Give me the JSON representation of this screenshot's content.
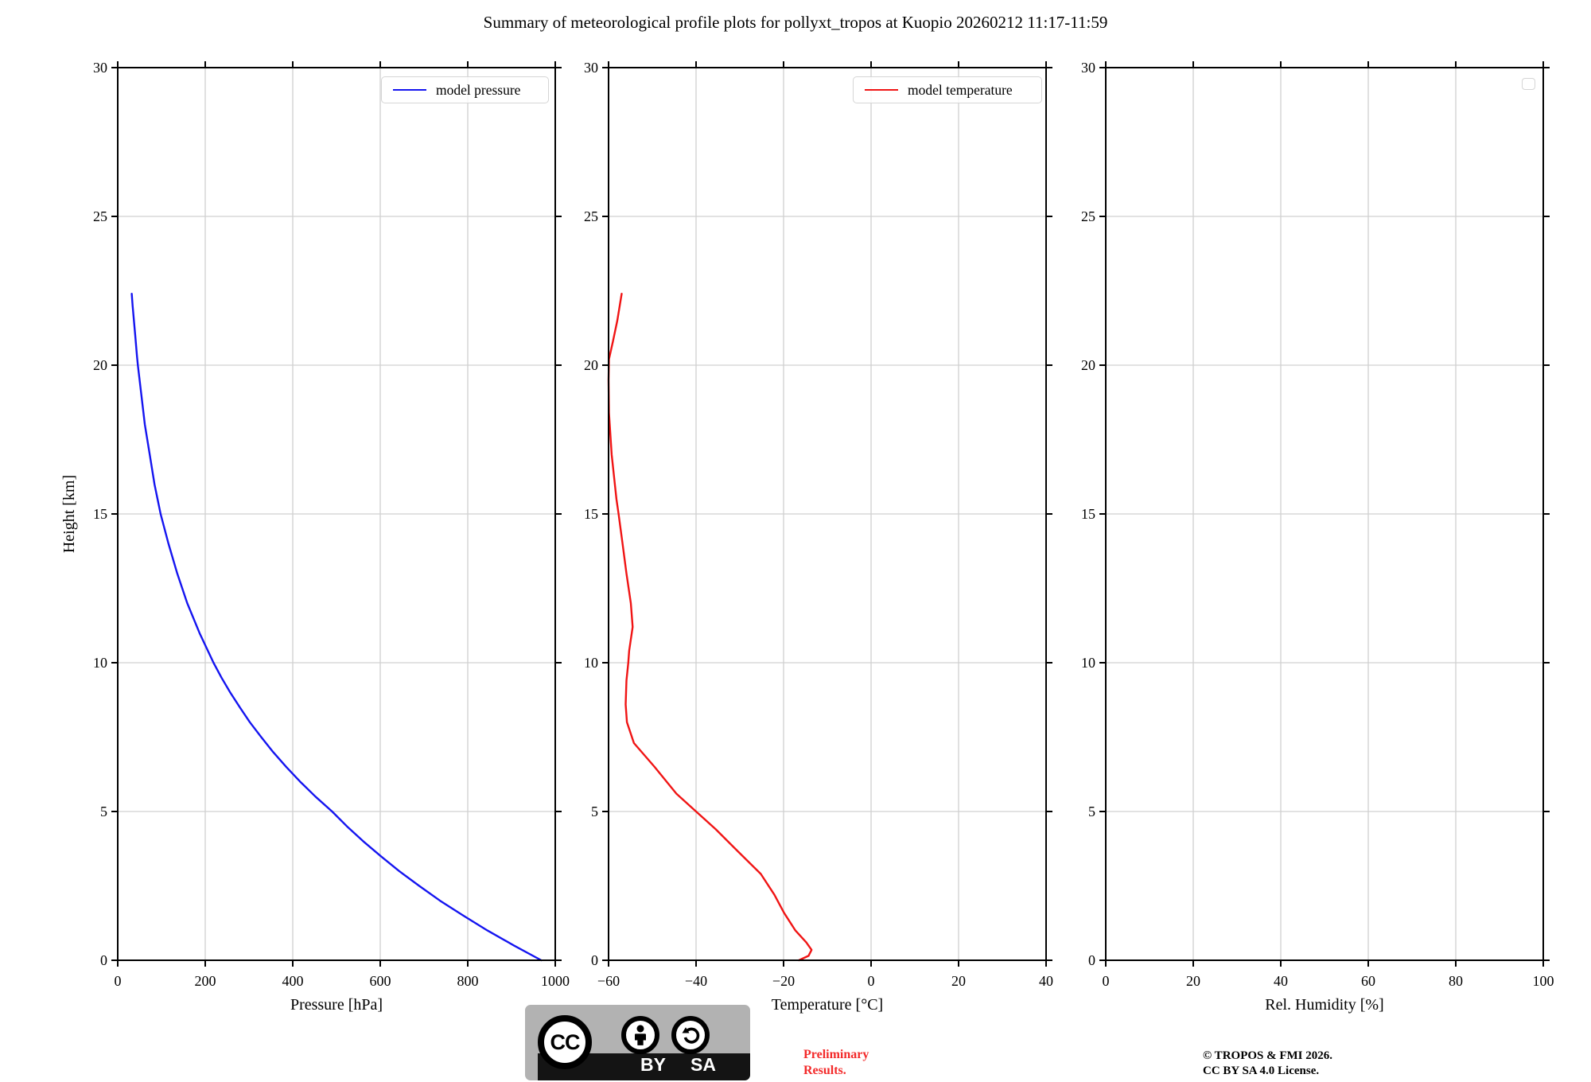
{
  "title": "Summary of meteorological profile plots for pollyxt_tropos at Kuopio 20260212 11:17-11:59",
  "colors": {
    "pressure_line": "#1414f0",
    "temperature_line": "#f01414",
    "grid": "#d0d0d0",
    "spine": "#000000",
    "preliminary_text": "#f32a2a",
    "badge_gray": "#b2b2b2",
    "badge_strip": "#141414"
  },
  "footer": {
    "badge": {
      "cc_label": "CC",
      "by_label": "BY",
      "sa_label": "SA"
    },
    "preliminary_line1": "Preliminary",
    "preliminary_line2": "Results.",
    "copyright_line1": "© TROPOS & FMI 2026.",
    "copyright_line2": "CC BY SA 4.0 License."
  },
  "chart_data": [
    {
      "type": "line",
      "title": "",
      "xlabel": "Pressure [hPa]",
      "ylabel": "Height [km]",
      "xlim": [
        0,
        1000
      ],
      "ylim": [
        0,
        30
      ],
      "xticks": [
        0,
        200,
        400,
        600,
        800,
        1000
      ],
      "yticks": [
        0,
        5,
        10,
        15,
        20,
        25,
        30
      ],
      "grid": true,
      "legend": {
        "label": "model pressure",
        "position": "upper right"
      },
      "series": [
        {
          "name": "model pressure",
          "color_key": "pressure_line",
          "x": [
            968,
            905,
            845,
            790,
            737,
            689,
            643,
            601,
            561,
            524,
            490,
            452,
            417,
            385,
            355,
            328,
            302,
            279,
            257,
            237,
            219,
            187,
            159,
            136,
            116,
            98,
            84,
            73,
            62,
            54,
            46,
            44,
            40,
            34,
            32
          ],
          "y": [
            0,
            0.5,
            1,
            1.5,
            2,
            2.5,
            3,
            3.5,
            4,
            4.5,
            5,
            5.5,
            6,
            6.5,
            7,
            7.5,
            8,
            8.5,
            9,
            9.5,
            10,
            11,
            12,
            13,
            14,
            15,
            16,
            17,
            18,
            19,
            20,
            20.3,
            21,
            22,
            22.4
          ]
        }
      ]
    },
    {
      "type": "line",
      "title": "",
      "xlabel": "Temperature [°C]",
      "ylabel": "",
      "xlim": [
        -60,
        40
      ],
      "ylim": [
        0,
        30
      ],
      "xticks": [
        -60,
        -40,
        -20,
        0,
        20,
        40
      ],
      "yticks": [
        0,
        5,
        10,
        15,
        20,
        25,
        30
      ],
      "grid": true,
      "legend": {
        "label": "model temperature",
        "position": "upper right"
      },
      "series": [
        {
          "name": "model temperature",
          "color_key": "temperature_line",
          "x": [
            -16.5,
            -14.3,
            -13.6,
            -14.8,
            -17.3,
            -19.9,
            -22.1,
            -25.2,
            -30.7,
            -35.5,
            -40.0,
            -44.5,
            -49.5,
            -54.2,
            -55.8,
            -56.1,
            -55.9,
            -55.5,
            -55.3,
            -54.5,
            -54.9,
            -55.9,
            -56.8,
            -57.7,
            -58.2,
            -59.3,
            -59.9,
            -60.0,
            -59.9,
            -59.0,
            -58.0,
            -57.0
          ],
          "y": [
            0,
            0.15,
            0.35,
            0.6,
            1.0,
            1.6,
            2.2,
            2.9,
            3.7,
            4.4,
            5.0,
            5.6,
            6.5,
            7.3,
            8.0,
            8.6,
            9.4,
            10.0,
            10.4,
            11.2,
            12.0,
            13.0,
            14.0,
            15.0,
            15.5,
            17.0,
            18.4,
            19.5,
            20.2,
            20.8,
            21.5,
            22.4
          ]
        }
      ]
    },
    {
      "type": "line",
      "title": "",
      "xlabel": "Rel. Humidity [%]",
      "ylabel": "",
      "xlim": [
        0,
        100
      ],
      "ylim": [
        0,
        30
      ],
      "xticks": [
        0,
        20,
        40,
        60,
        80,
        100
      ],
      "yticks": [
        0,
        5,
        10,
        15,
        20,
        25,
        30
      ],
      "grid": true,
      "legend": {
        "label": "",
        "position": "upper right",
        "empty": true
      },
      "series": []
    }
  ]
}
